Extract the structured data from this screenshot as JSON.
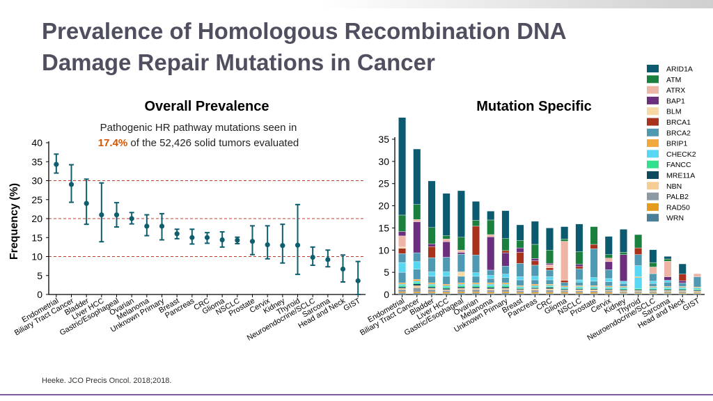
{
  "slide": {
    "title_line1": "Prevalence of Homologous Recombination DNA",
    "title_line2": "Damage Repair Mutations in Cancer",
    "citation": "Heeke. JCO Precis Oncol. 2018;2018."
  },
  "colors": {
    "title": "#4f4f5f",
    "teal": "#0f5e6e",
    "ref_line": "#c0392b",
    "highlight": "#d35400",
    "accent_line": "#7c5aa6"
  },
  "chart_data": [
    {
      "type": "scatter",
      "title": "Overall Prevalence",
      "subtitle_line1": "Pathogenic HR pathway mutations seen in",
      "subtitle_pct": "17.4%",
      "subtitle_rest": " of the 52,426 solid tumors evaluated",
      "ylabel": "Frequency (%)",
      "ylim": [
        0,
        40
      ],
      "yticks": [
        0,
        5,
        10,
        15,
        20,
        25,
        30,
        35,
        40
      ],
      "ref_lines": [
        10,
        20,
        30
      ],
      "categories": [
        "Endometrial",
        "Biliary Tract Cancer",
        "Bladder",
        "Liver HCC",
        "Gastric/Esophageal",
        "Ovarian",
        "Melanoma",
        "Unknown Primary",
        "Breast",
        "Pancreas",
        "CRC",
        "Glioma",
        "NSCLC",
        "Prostate",
        "Cervix",
        "Kidney",
        "Thyroid",
        "Neuroendocrine/SCLC",
        "Sarcoma",
        "Head and Neck",
        "GIST"
      ],
      "values": [
        34.3,
        29,
        24,
        21,
        21,
        20,
        18,
        18,
        16,
        15,
        15,
        14.4,
        14.3,
        14,
        13.1,
        12.9,
        13,
        9.8,
        9.2,
        6.7,
        3.6
      ],
      "lower": [
        32,
        24.3,
        18.5,
        13.9,
        17.8,
        18.6,
        15.5,
        14.4,
        14.7,
        13.3,
        13.5,
        12.5,
        13.4,
        10.5,
        9.4,
        8.3,
        5.3,
        7.7,
        7.3,
        3.3,
        0
      ],
      "upper": [
        37,
        34.2,
        30.4,
        29.4,
        24.2,
        21.6,
        21,
        21.3,
        17.2,
        17.2,
        16.3,
        16.5,
        15.1,
        18.1,
        18.1,
        18.5,
        23.7,
        12.5,
        11.7,
        10.4,
        8.7
      ]
    },
    {
      "type": "bar",
      "title": "Mutation Specific",
      "stacked": true,
      "ylim": [
        0,
        35
      ],
      "yticks": [
        0,
        5,
        10,
        15,
        20,
        25,
        30,
        35
      ],
      "categories": [
        "Endometrial",
        "Biliary Tract Cancer",
        "Bladder",
        "Liver HCC",
        "Gastric/Esophageal",
        "Ovarian",
        "Melanoma",
        "Unknown Primary",
        "Breast",
        "Pancreas",
        "CRC",
        "Glioma",
        "NSCLC",
        "Prostate",
        "Cervix",
        "Kidney",
        "Thyroid",
        "Neuroendocrine/SCLC",
        "Sarcoma",
        "Head and Neck",
        "GIST"
      ],
      "legend": [
        "ARID1A",
        "ATM",
        "ATRX",
        "BAP1",
        "BLM",
        "BRCA1",
        "BRCA2",
        "BRIP1",
        "CHECK2",
        "FANCC",
        "MRE11A",
        "NBN",
        "PALB2",
        "RAD50",
        "WRN"
      ],
      "legend_colors": [
        "#0c5a70",
        "#1b7f3e",
        "#eeb4a6",
        "#6b2f7e",
        "#f7d9a4",
        "#a8321c",
        "#4f9ab2",
        "#f2a93b",
        "#58d7f2",
        "#2fe08c",
        "#0f4a5e",
        "#f7cc94",
        "#8d9aa4",
        "#e59a20",
        "#4a7f9a"
      ],
      "bottom_layers": [
        "WRN",
        "RAD50",
        "PALB2",
        "NBN",
        "MRE11A",
        "FANCC",
        "CHECK2",
        "BRIP1"
      ],
      "bottom_values": [
        [
          0.3,
          0.3,
          0.5,
          0.3,
          0.3,
          0.3,
          0.3,
          0.3
        ],
        [
          0.3,
          0.3,
          0.9,
          0.5,
          0.4,
          0.3,
          0.3,
          0.4
        ],
        [
          0.3,
          0.3,
          0.5,
          0.3,
          0.3,
          0.3,
          0.3,
          0.3
        ],
        [
          0.2,
          0.3,
          0.4,
          0.2,
          0.3,
          0.3,
          0.3,
          0.3
        ],
        [
          0.3,
          0.3,
          0.5,
          0.3,
          0.3,
          0.3,
          0.3,
          0.3
        ],
        [
          0.3,
          0.3,
          0.5,
          0.3,
          0.3,
          0.3,
          0.3,
          0.3
        ],
        [
          0.2,
          0.3,
          0.5,
          0.3,
          0.3,
          0.3,
          0.4,
          0.3
        ],
        [
          0.3,
          0.3,
          0.5,
          0.3,
          0.3,
          0.3,
          0.3,
          0.3
        ],
        [
          0.2,
          0.3,
          0.4,
          0.2,
          0.2,
          0.2,
          0.3,
          0.2
        ],
        [
          0.2,
          0.3,
          0.5,
          0.3,
          0.2,
          0.2,
          0.3,
          0.3
        ],
        [
          0.2,
          0.3,
          0.5,
          0.3,
          0.3,
          0.2,
          0.3,
          0.2
        ],
        [
          0.2,
          0.3,
          0.3,
          0.2,
          0.2,
          0.2,
          0.3,
          0.2
        ],
        [
          0.2,
          0.3,
          0.3,
          0.3,
          0.2,
          0.2,
          0.3,
          0.2
        ],
        [
          0.2,
          0.3,
          0.3,
          0.3,
          0.2,
          0.2,
          0.3,
          0.2
        ],
        [
          0.2,
          0.3,
          0.3,
          0.2,
          0.2,
          0.2,
          0.3,
          0.2
        ],
        [
          0.2,
          0.2,
          0.3,
          0.2,
          0.2,
          0.2,
          0.3,
          0.2
        ],
        [
          0.2,
          0.2,
          0.3,
          0.2,
          0.2,
          0.2,
          2.5,
          0.2
        ],
        [
          0.2,
          0.2,
          0.3,
          0.2,
          0.2,
          0.2,
          0.3,
          0.2
        ],
        [
          0.2,
          0.2,
          0.3,
          0.2,
          0.2,
          0.2,
          0.3,
          0.2
        ],
        [
          0.2,
          0.2,
          0.3,
          0.2,
          0.2,
          0.2,
          0.3,
          0.2
        ],
        [
          0.2,
          0.2,
          0.2,
          0.2,
          0.2,
          0.2,
          0.3,
          0.2
        ]
      ],
      "segments": [
        [
          [
            "BRCA2",
            2.4
          ],
          [
            "CHECK2",
            2.2
          ],
          [
            "BRCA2",
            2.0
          ],
          [
            "BRCA1",
            1.2
          ],
          [
            "BLM",
            0.3
          ],
          [
            "ATRX",
            2.5
          ],
          [
            "BAP1",
            1.0
          ],
          [
            "ATM",
            3.7
          ],
          [
            "ARID1A",
            22.0
          ]
        ],
        [
          [
            "BRCA2",
            2.3
          ],
          [
            "CHECK2",
            1.7
          ],
          [
            "BRCA2",
            2.0
          ],
          [
            "BAP1",
            7.0
          ],
          [
            "ATRX",
            0.5
          ],
          [
            "ATM",
            3.4
          ],
          [
            "ARID1A",
            12.5
          ]
        ],
        [
          [
            "BRCA2",
            1.5
          ],
          [
            "CHECK2",
            1.0
          ],
          [
            "BRCA2",
            3.2
          ],
          [
            "BRCA1",
            2.5
          ],
          [
            "BAP1",
            0.6
          ],
          [
            "ATM",
            3.7
          ],
          [
            "ARID1A",
            10.5
          ]
        ],
        [
          [
            "BRCA2",
            1.8
          ],
          [
            "CHECK2",
            1.0
          ],
          [
            "BRCA2",
            3.3
          ],
          [
            "BAP1",
            3.5
          ],
          [
            "ATRX",
            0.6
          ],
          [
            "ATM",
            0.8
          ],
          [
            "ARID1A",
            9.5
          ]
        ],
        [
          [
            "BRCA2",
            1.5
          ],
          [
            "BLM",
            1.0
          ],
          [
            "BRCA2",
            4.0
          ],
          [
            "BAP1",
            0.4
          ],
          [
            "ATRX",
            0.5
          ],
          [
            "ATM",
            2.9
          ],
          [
            "ARID1A",
            10.5
          ]
        ],
        [
          [
            "BRCA2",
            1.5
          ],
          [
            "CHECK2",
            0.8
          ],
          [
            "BRCA2",
            4.0
          ],
          [
            "BRCA1",
            6.5
          ],
          [
            "ATM",
            1.3
          ],
          [
            "ARID1A",
            4.3
          ]
        ],
        [
          [
            "BRCA2",
            1.0
          ],
          [
            "CHECK2",
            0.7
          ],
          [
            "BRCA2",
            1.2
          ],
          [
            "BAP1",
            7.5
          ],
          [
            "ATRX",
            0.5
          ],
          [
            "ATM",
            3.3
          ],
          [
            "ARID1A",
            2.0
          ]
        ],
        [
          [
            "BRCA2",
            1.2
          ],
          [
            "CHECK2",
            0.8
          ],
          [
            "BRCA2",
            1.8
          ],
          [
            "BAP1",
            3.0
          ],
          [
            "BRCA1",
            0.5
          ],
          [
            "ATM",
            2.7
          ],
          [
            "ARID1A",
            6.3
          ]
        ],
        [
          [
            "BRCA2",
            1.3
          ],
          [
            "CHECK2",
            0.7
          ],
          [
            "BRCA2",
            3.0
          ],
          [
            "BRCA1",
            2.5
          ],
          [
            "BAP1",
            1.0
          ],
          [
            "ATM",
            1.7
          ],
          [
            "ARID1A",
            3.5
          ]
        ],
        [
          [
            "BRCA2",
            1.0
          ],
          [
            "CHECK2",
            0.8
          ],
          [
            "BRCA2",
            2.5
          ],
          [
            "BRCA1",
            1.0
          ],
          [
            "BAP1",
            0.5
          ],
          [
            "ATM",
            3.2
          ],
          [
            "ARID1A",
            5.2
          ]
        ],
        [
          [
            "BRCA2",
            1.0
          ],
          [
            "CHECK2",
            0.7
          ],
          [
            "BRCA2",
            1.5
          ],
          [
            "BRCA1",
            0.5
          ],
          [
            "ATRX",
            0.7
          ],
          [
            "BAP1",
            0.3
          ],
          [
            "ATM",
            3.0
          ],
          [
            "ARID1A",
            5.0
          ]
        ],
        [
          [
            "BRCA2",
            0.8
          ],
          [
            "BRCA1",
            0.5
          ],
          [
            "ATRX",
            8.8
          ],
          [
            "ATM",
            0.5
          ],
          [
            "ARID1A",
            2.8
          ]
        ],
        [
          [
            "BRCA2",
            0.8
          ],
          [
            "CHECK2",
            0.5
          ],
          [
            "BRCA2",
            2.5
          ],
          [
            "BRCA1",
            0.5
          ],
          [
            "BAP1",
            0.5
          ],
          [
            "ATM",
            2.9
          ],
          [
            "ARID1A",
            6.2
          ]
        ],
        [
          [
            "BRCA2",
            1.0
          ],
          [
            "CHECK2",
            0.8
          ],
          [
            "BRCA2",
            6.5
          ],
          [
            "BRCA1",
            1.0
          ],
          [
            "ATM",
            4.0
          ]
        ],
        [
          [
            "BRCA2",
            1.0
          ],
          [
            "CHECK2",
            0.7
          ],
          [
            "BRCA2",
            2.0
          ],
          [
            "BAP1",
            1.8
          ],
          [
            "ATRX",
            0.8
          ],
          [
            "ATM",
            0.8
          ],
          [
            "ARID1A",
            4.1
          ]
        ],
        [
          [
            "BRCA2",
            0.7
          ],
          [
            "CHECK2",
            0.5
          ],
          [
            "BAP1",
            6.0
          ],
          [
            "ATM",
            0.5
          ],
          [
            "ARID1A",
            5.2
          ]
        ],
        [
          [
            "CHECK2",
            2.5
          ],
          [
            "BRCA2",
            2.5
          ],
          [
            "BRCA1",
            1.5
          ],
          [
            "ATM",
            3.0
          ]
        ],
        [
          [
            "BRCA2",
            0.7
          ],
          [
            "CHECK2",
            0.5
          ],
          [
            "BRCA2",
            1.7
          ],
          [
            "ATRX",
            1.5
          ],
          [
            "ATM",
            1.0
          ],
          [
            "ARID1A",
            2.9
          ]
        ],
        [
          [
            "BRCA2",
            1.0
          ],
          [
            "CHECK2",
            0.4
          ],
          [
            "BAP1",
            0.8
          ],
          [
            "ATRX",
            3.5
          ],
          [
            "ATM",
            0.5
          ],
          [
            "ARID1A",
            0.6
          ]
        ],
        [
          [
            "BRCA2",
            0.8
          ],
          [
            "BAP1",
            0.5
          ],
          [
            "BRCA1",
            1.5
          ],
          [
            "ARID1A",
            2.3
          ]
        ],
        [
          [
            "BRCA2",
            2.3
          ],
          [
            "ATRX",
            0.7
          ]
        ]
      ]
    }
  ]
}
